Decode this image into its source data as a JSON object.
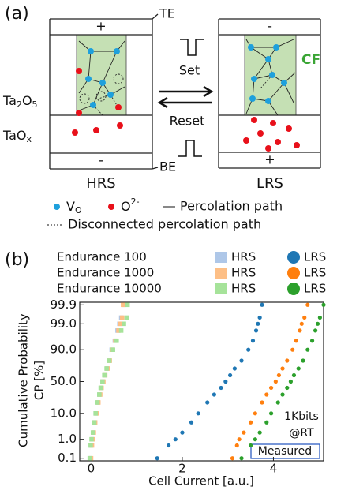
{
  "diagram": {
    "panel": "(a)",
    "te": "TE",
    "be": "BE",
    "hrs_top": "+",
    "hrs_bottom": "-",
    "lrs_top": "-",
    "lrs_bottom": "+",
    "oxide": {
      "base": "Ta",
      "sub1": "2",
      "mid": "O",
      "sub2": "5"
    },
    "suboxide": {
      "base": "TaO",
      "sub": "x"
    },
    "hrs": "HRS",
    "lrs": "LRS",
    "set": "Set",
    "reset": "Reset",
    "cf": "CF",
    "legend": {
      "vo": {
        "base": "V",
        "sub": "O"
      },
      "o": {
        "base": "O",
        "sup": "2-"
      },
      "path": "Percolation path",
      "disconnected": "Disconnected percolation path"
    }
  },
  "chart_data": {
    "type": "scatter",
    "panel": "(b)",
    "x_label": "Cell Current [a.u.]",
    "y_label": [
      "Cumulative Probability",
      "CP [%]"
    ],
    "y_scale": "probit",
    "xlim": [
      -0.25,
      5.1
    ],
    "xticks": [
      0,
      2,
      4
    ],
    "ylim": [
      0.07,
      99.93
    ],
    "yticks": [
      0.1,
      {
        "value": 1,
        "label": "1.0"
      },
      {
        "value": 10,
        "label": "10.0"
      },
      {
        "value": 50,
        "label": "50.0"
      },
      {
        "value": 90,
        "label": "90.0"
      },
      {
        "value": 99,
        "label": "99.0"
      },
      99.9
    ],
    "legend_rows": [
      "Endurance 100",
      "Endurance 1000",
      "Endurance 10000"
    ],
    "annotations": [
      "1Kbits",
      "@RT"
    ],
    "boxed_annotation": "Measured",
    "series": [
      {
        "name": "HRS",
        "color": "#aec7e8",
        "marker": "square",
        "x": [
          -0.02,
          0.0,
          0.02,
          0.05,
          0.08,
          0.1,
          0.15,
          0.18,
          0.22,
          0.25,
          0.3,
          0.35,
          0.4,
          0.45,
          0.52,
          0.58,
          0.62,
          0.66,
          0.72
        ],
        "values": [
          0.1,
          0.5,
          1,
          2,
          5,
          10,
          20,
          30,
          40,
          50,
          60,
          70,
          80,
          90,
          95,
          98,
          99,
          99.5,
          99.9
        ]
      },
      {
        "name": "HRS",
        "color": "#fdbf86",
        "marker": "square",
        "x": [
          0.0,
          0.02,
          0.04,
          0.06,
          0.09,
          0.12,
          0.16,
          0.2,
          0.23,
          0.27,
          0.31,
          0.36,
          0.41,
          0.47,
          0.53,
          0.6,
          0.64,
          0.68,
          0.7
        ],
        "values": [
          0.1,
          0.5,
          1,
          2,
          5,
          10,
          20,
          30,
          40,
          50,
          60,
          70,
          80,
          90,
          95,
          98,
          99,
          99.5,
          99.9
        ]
      },
      {
        "name": "HRS",
        "color": "#a6e39a",
        "marker": "square",
        "x": [
          -0.03,
          -0.01,
          0.01,
          0.04,
          0.07,
          0.1,
          0.14,
          0.18,
          0.21,
          0.25,
          0.29,
          0.34,
          0.4,
          0.48,
          0.56,
          0.66,
          0.72,
          0.78,
          0.8
        ],
        "values": [
          0.1,
          0.5,
          1,
          2,
          5,
          10,
          20,
          30,
          40,
          50,
          60,
          70,
          80,
          90,
          95,
          98,
          99,
          99.5,
          99.9
        ]
      },
      {
        "name": "LRS",
        "color": "#1f77b4",
        "marker": "circle",
        "x": [
          1.45,
          1.7,
          1.85,
          2.0,
          2.2,
          2.35,
          2.55,
          2.7,
          2.85,
          2.95,
          3.05,
          3.15,
          3.3,
          3.45,
          3.55,
          3.62,
          3.66,
          3.7,
          3.75
        ],
        "values": [
          0.1,
          0.5,
          1,
          2,
          5,
          10,
          20,
          30,
          40,
          50,
          60,
          70,
          80,
          90,
          95,
          98,
          99,
          99.5,
          99.9
        ]
      },
      {
        "name": "LRS",
        "color": "#ff7f0e",
        "marker": "circle",
        "x": [
          3.1,
          3.2,
          3.25,
          3.35,
          3.5,
          3.6,
          3.75,
          3.85,
          3.95,
          4.05,
          4.12,
          4.2,
          4.3,
          4.42,
          4.5,
          4.58,
          4.62,
          4.68,
          4.75
        ],
        "values": [
          0.1,
          0.5,
          1,
          2,
          5,
          10,
          20,
          30,
          40,
          50,
          60,
          70,
          80,
          90,
          95,
          98,
          99,
          99.5,
          99.9
        ]
      },
      {
        "name": "LRS",
        "color": "#2ca02c",
        "marker": "circle",
        "x": [
          3.3,
          3.5,
          3.6,
          3.7,
          3.85,
          3.95,
          4.1,
          4.2,
          4.3,
          4.38,
          4.45,
          4.55,
          4.65,
          4.75,
          4.85,
          4.92,
          4.97,
          5.02,
          5.1
        ],
        "values": [
          0.1,
          0.5,
          1,
          2,
          5,
          10,
          20,
          30,
          40,
          50,
          60,
          70,
          80,
          90,
          95,
          98,
          99,
          99.5,
          99.9
        ]
      }
    ]
  }
}
